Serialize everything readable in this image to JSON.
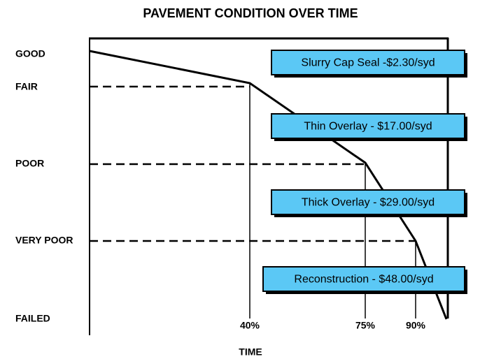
{
  "title": "PAVEMENT CONDITION OVER TIME",
  "condition_levels": [
    "GOOD",
    "FAIR",
    "POOR",
    "VERY POOR",
    "FAILED"
  ],
  "time_marks": [
    "40%",
    "75%",
    "90%"
  ],
  "x_axis_label": "TIME",
  "treatments": [
    "Slurry Cap Seal -$2.30/syd",
    "Thin Overlay - $17.00/syd",
    "Thick Overlay - $29.00/syd",
    "Reconstruction - $48.00/syd"
  ]
}
